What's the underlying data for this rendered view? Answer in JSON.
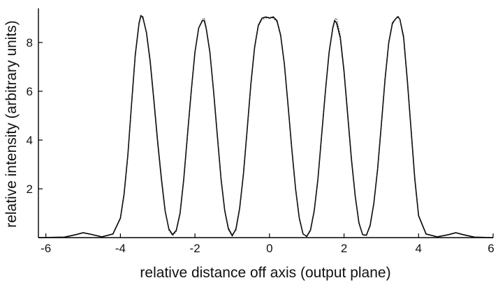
{
  "chart_data": {
    "type": "line",
    "title": "",
    "xlabel": "relative distance off axis (output plane)",
    "ylabel": "relative intensity (arbitrary units)",
    "xlim": [
      -6.2,
      6.0
    ],
    "ylim": [
      0,
      9.4
    ],
    "x_ticks": [
      -6,
      -4,
      -2,
      0,
      2,
      4,
      6
    ],
    "x_tick_labels": [
      "-6",
      "-4",
      "-2",
      "0",
      "2",
      "4",
      "6"
    ],
    "y_ticks": [
      2,
      4,
      6,
      8
    ],
    "y_tick_labels": [
      "2",
      "4",
      "6",
      "8"
    ],
    "grid": false,
    "series": [
      {
        "style": "solid",
        "x": [
          -6.2,
          -5.5,
          -5.2,
          -5.0,
          -4.8,
          -4.5,
          -4.2,
          -4.0,
          -3.9,
          -3.8,
          -3.7,
          -3.6,
          -3.5,
          -3.45,
          -3.4,
          -3.3,
          -3.2,
          -3.1,
          -3.0,
          -2.9,
          -2.8,
          -2.7,
          -2.6,
          -2.5,
          -2.4,
          -2.3,
          -2.2,
          -2.1,
          -2.0,
          -1.9,
          -1.8,
          -1.75,
          -1.7,
          -1.6,
          -1.5,
          -1.4,
          -1.3,
          -1.2,
          -1.1,
          -1.0,
          -0.9,
          -0.8,
          -0.7,
          -0.6,
          -0.5,
          -0.4,
          -0.3,
          -0.2,
          -0.1,
          0.0,
          0.1,
          0.2,
          0.3,
          0.4,
          0.5,
          0.6,
          0.7,
          0.8,
          0.9,
          1.0,
          1.1,
          1.2,
          1.3,
          1.4,
          1.5,
          1.6,
          1.7,
          1.75,
          1.8,
          1.9,
          2.0,
          2.1,
          2.2,
          2.3,
          2.4,
          2.5,
          2.6,
          2.7,
          2.8,
          2.9,
          3.0,
          3.1,
          3.2,
          3.3,
          3.4,
          3.45,
          3.5,
          3.6,
          3.7,
          3.8,
          3.9,
          4.0,
          4.2,
          4.5,
          4.8,
          5.0,
          5.2,
          5.5,
          6.0
        ],
        "y": [
          0.0,
          0.02,
          0.12,
          0.2,
          0.14,
          0.03,
          0.15,
          0.8,
          1.8,
          3.4,
          5.5,
          7.5,
          8.8,
          9.1,
          9.05,
          8.4,
          7.2,
          5.6,
          3.9,
          2.4,
          1.1,
          0.35,
          0.12,
          0.3,
          1.0,
          2.4,
          4.2,
          6.0,
          7.6,
          8.6,
          8.9,
          8.9,
          8.6,
          7.6,
          6.0,
          4.2,
          2.4,
          1.1,
          0.35,
          0.08,
          0.35,
          1.2,
          2.6,
          4.4,
          6.3,
          7.8,
          8.7,
          9.0,
          9.05,
          9.0,
          9.05,
          8.9,
          8.3,
          7.1,
          5.4,
          3.6,
          2.0,
          0.8,
          0.15,
          0.05,
          0.3,
          1.1,
          2.4,
          4.2,
          6.0,
          7.6,
          8.6,
          8.9,
          8.8,
          8.2,
          6.8,
          5.0,
          3.2,
          1.7,
          0.6,
          0.12,
          0.1,
          0.5,
          1.4,
          2.8,
          4.6,
          6.5,
          8.0,
          8.8,
          9.0,
          9.05,
          8.95,
          8.2,
          6.4,
          4.4,
          2.4,
          0.9,
          0.15,
          0.03,
          0.12,
          0.2,
          0.12,
          0.02,
          0.0
        ]
      },
      {
        "style": "dotted",
        "x": [
          -4.0,
          -3.9,
          -3.8,
          -3.7,
          -3.6,
          -3.5,
          -3.45,
          -3.4,
          -3.3,
          -3.2,
          -3.1,
          -3.0,
          -2.9,
          -2.8,
          -2.7,
          -2.6,
          -2.5,
          -2.4,
          -2.3,
          -2.2,
          -2.1,
          -2.0,
          -1.9,
          -1.8,
          -1.75,
          -1.7,
          -1.6,
          -1.5,
          -1.4,
          -1.3,
          -1.2,
          -1.1,
          -1.0,
          -0.9,
          -0.8,
          -0.7,
          -0.6,
          -0.5,
          -0.4,
          -0.3,
          -0.2,
          -0.1,
          0.0,
          0.1,
          0.2,
          0.3,
          0.4,
          0.5,
          0.6,
          0.7,
          0.8,
          0.9,
          1.0,
          1.1,
          1.2,
          1.3,
          1.4,
          1.5,
          1.6,
          1.7,
          1.75,
          1.8,
          1.9,
          2.0,
          2.1,
          2.2,
          2.3,
          2.4,
          2.5,
          2.6,
          2.7,
          2.8,
          2.9,
          3.0,
          3.1,
          3.2,
          3.3,
          3.4,
          3.45,
          3.5,
          3.6,
          3.7,
          3.8,
          3.9,
          4.0
        ],
        "y": [
          0.75,
          1.75,
          3.35,
          5.45,
          7.45,
          8.75,
          9.05,
          9.0,
          8.45,
          7.3,
          5.7,
          4.0,
          2.5,
          1.15,
          0.3,
          0.08,
          0.25,
          0.95,
          2.35,
          4.15,
          5.95,
          7.55,
          8.6,
          8.95,
          9.0,
          8.65,
          7.65,
          6.05,
          4.25,
          2.45,
          1.15,
          0.4,
          0.12,
          0.3,
          1.15,
          2.55,
          4.35,
          6.25,
          7.75,
          8.65,
          8.95,
          9.0,
          9.05,
          9.0,
          8.85,
          8.25,
          7.05,
          5.35,
          3.55,
          1.95,
          0.75,
          0.12,
          0.08,
          0.35,
          1.15,
          2.45,
          4.25,
          6.05,
          7.65,
          8.65,
          8.95,
          9.0,
          8.3,
          6.9,
          5.1,
          3.3,
          1.75,
          0.65,
          0.1,
          0.08,
          0.45,
          1.35,
          2.75,
          4.55,
          6.45,
          7.95,
          8.75,
          9.0,
          9.1,
          8.95,
          8.3,
          6.5,
          4.5,
          2.5,
          0.95
        ]
      }
    ]
  }
}
